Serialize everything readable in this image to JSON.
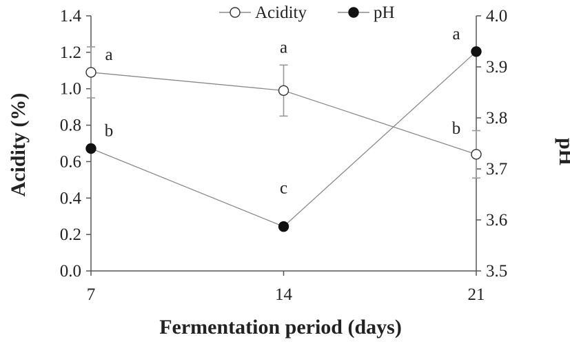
{
  "chart_data": {
    "type": "line",
    "title": "",
    "xlabel": "Fermentation period (days)",
    "ylabel_left": "Acidity (%)",
    "ylabel_right": "pH",
    "x": [
      7,
      14,
      21
    ],
    "x_tick_labels": [
      "7",
      "14",
      "21"
    ],
    "ylim_left": [
      0.0,
      1.4
    ],
    "y_ticks_left": [
      "0.0",
      "0.2",
      "0.4",
      "0.6",
      "0.8",
      "1.0",
      "1.2",
      "1.4"
    ],
    "ylim_right": [
      3.5,
      4.0
    ],
    "y_ticks_right": [
      "3.5",
      "3.6",
      "3.7",
      "3.8",
      "3.9",
      "4.0"
    ],
    "grid": false,
    "legend_position": "top",
    "series": [
      {
        "name": "Acidity",
        "axis": "left",
        "marker": "open-circle",
        "values": [
          1.09,
          0.99,
          0.64
        ],
        "error": [
          0.14,
          0.14,
          0.13
        ],
        "significance": [
          "a",
          "a",
          "b"
        ]
      },
      {
        "name": "pH",
        "axis": "right",
        "marker": "filled-circle",
        "values": [
          3.74,
          3.587,
          3.93
        ],
        "error": [
          0.0,
          0.0,
          0.0
        ],
        "significance": [
          "b",
          "c",
          "a"
        ]
      }
    ],
    "colors": {
      "line": "#8a8a8a",
      "error_bar": "#999999",
      "marker_filled": "#111111",
      "marker_open": "#ffffff",
      "axis": "#555555"
    }
  }
}
